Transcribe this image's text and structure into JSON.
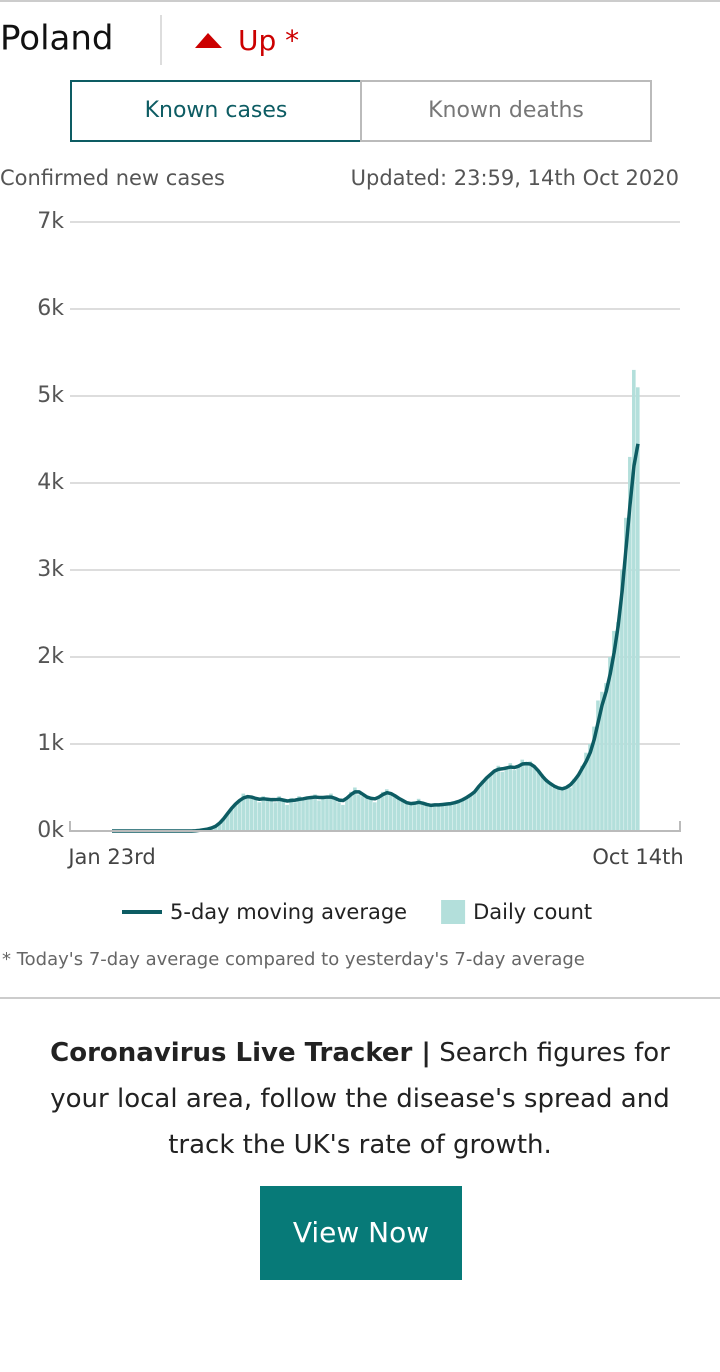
{
  "header": {
    "country": "Poland",
    "trend": "Up *"
  },
  "tabs": [
    "Known cases",
    "Known deaths"
  ],
  "chart_data": {
    "type": "combo",
    "subtitle": "Confirmed new cases",
    "updated": "Updated: 23:59, 14th Oct 2020",
    "categories": [
      "Jan 23rd",
      null,
      null,
      null,
      null,
      null,
      null,
      null,
      null,
      null,
      null,
      null,
      null,
      null,
      null,
      null,
      null,
      null,
      null,
      null,
      null,
      null,
      null,
      null,
      null,
      null,
      null,
      null,
      null,
      null,
      null,
      null,
      null,
      null,
      null,
      null,
      null,
      null,
      null,
      null,
      null,
      null,
      null,
      null,
      null,
      null,
      null,
      null,
      null,
      null,
      null,
      null,
      null,
      null,
      null,
      null,
      null,
      null,
      null,
      null,
      null,
      null,
      null,
      null,
      null,
      null,
      null,
      null,
      null,
      null,
      null,
      null,
      null,
      null,
      null,
      null,
      null,
      null,
      null,
      null,
      null,
      null,
      null,
      null,
      null,
      null,
      null,
      null,
      null,
      null,
      null,
      null,
      null,
      null,
      null,
      null,
      null,
      null,
      null,
      null,
      null,
      null,
      null,
      null,
      null,
      null,
      null,
      null,
      null,
      null,
      null,
      null,
      null,
      null,
      null,
      null,
      null,
      null,
      null,
      null,
      null,
      null,
      null,
      null,
      null,
      null,
      null,
      null,
      null,
      null,
      null,
      null,
      "Oct 14th"
    ],
    "series": [
      {
        "name": "5-day moving average",
        "color": "#0d5c63",
        "type": "line",
        "values": [
          0,
          0,
          0,
          0,
          0,
          0,
          0,
          0,
          0,
          0,
          0,
          0,
          0,
          0,
          0,
          0,
          0,
          0,
          0,
          0,
          0,
          3,
          8,
          15,
          22,
          35,
          55,
          90,
          140,
          200,
          260,
          310,
          350,
          380,
          395,
          390,
          375,
          365,
          370,
          365,
          360,
          360,
          365,
          355,
          345,
          350,
          355,
          365,
          370,
          380,
          385,
          390,
          385,
          385,
          390,
          390,
          375,
          355,
          350,
          380,
          420,
          450,
          450,
          420,
          390,
          375,
          370,
          390,
          420,
          440,
          430,
          405,
          375,
          350,
          325,
          315,
          320,
          330,
          320,
          305,
          295,
          300,
          300,
          305,
          310,
          315,
          325,
          340,
          360,
          385,
          415,
          450,
          510,
          560,
          610,
          650,
          690,
          710,
          715,
          725,
          735,
          730,
          745,
          770,
          775,
          770,
          740,
          690,
          630,
          580,
          545,
          515,
          495,
          485,
          500,
          530,
          580,
          640,
          720,
          800,
          900,
          1050,
          1250,
          1450,
          1600,
          1800,
          2050,
          2350,
          2750,
          3250,
          3750,
          4200,
          4450
        ]
      },
      {
        "name": "Daily count",
        "color": "#b3dfdb",
        "type": "bar",
        "values": [
          0,
          0,
          0,
          0,
          0,
          0,
          0,
          0,
          0,
          0,
          0,
          0,
          0,
          0,
          0,
          0,
          0,
          0,
          0,
          0,
          0,
          5,
          10,
          20,
          25,
          30,
          50,
          70,
          150,
          200,
          250,
          300,
          350,
          430,
          380,
          400,
          370,
          330,
          400,
          350,
          380,
          330,
          400,
          350,
          300,
          380,
          330,
          400,
          350,
          380,
          370,
          420,
          350,
          400,
          380,
          430,
          360,
          330,
          300,
          380,
          450,
          500,
          420,
          400,
          380,
          370,
          330,
          400,
          450,
          480,
          430,
          400,
          380,
          350,
          330,
          300,
          330,
          370,
          320,
          300,
          290,
          300,
          310,
          290,
          320,
          300,
          340,
          330,
          360,
          400,
          420,
          450,
          500,
          580,
          600,
          650,
          700,
          750,
          680,
          720,
          780,
          700,
          740,
          820,
          760,
          800,
          750,
          700,
          650,
          600,
          560,
          500,
          500,
          470,
          480,
          500,
          600,
          650,
          750,
          900,
          1000,
          1200,
          1500,
          1600,
          1700,
          2000,
          2300,
          2400,
          3000,
          3600,
          4300,
          5300,
          5100
        ]
      }
    ],
    "ylim": [
      0,
      7000
    ],
    "yticks": [
      {
        "value": 0,
        "label": "0k"
      },
      {
        "value": 1000,
        "label": "1k"
      },
      {
        "value": 2000,
        "label": "2k"
      },
      {
        "value": 3000,
        "label": "3k"
      },
      {
        "value": 4000,
        "label": "4k"
      },
      {
        "value": 5000,
        "label": "5k"
      },
      {
        "value": 6000,
        "label": "6k"
      },
      {
        "value": 7000,
        "label": "7k"
      }
    ],
    "grid": true,
    "footnote": "* Today's 7-day average compared to yesterday's 7-day average"
  },
  "promo": {
    "title": "Coronavirus Live Tracker |",
    "text": "Search figures for your local area, follow the disease's spread and track the UK's rate of growth.",
    "button": "View Now"
  }
}
